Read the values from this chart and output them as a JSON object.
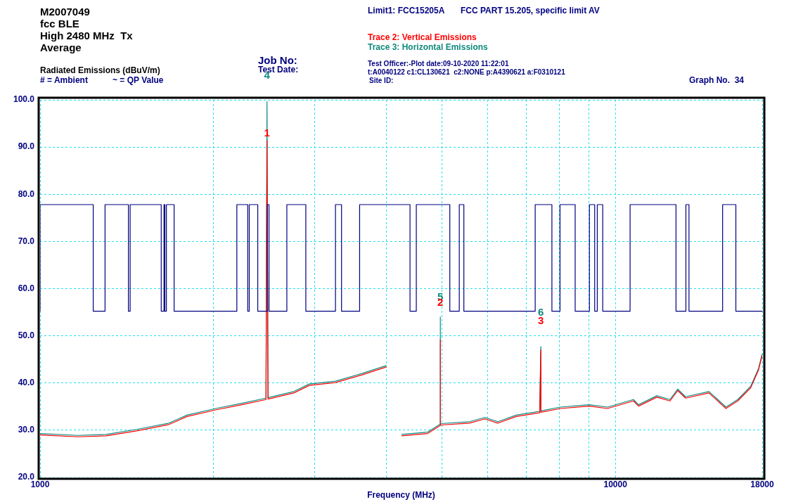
{
  "chart_data": {
    "type": "line",
    "title": "M2007049",
    "subtitle": "fcc BLE\nHigh 2480 MHz  Tx\nAverage",
    "xlabel": "Frequency (MHz)",
    "ylabel": "Radiated Emissions (dBuV/m)",
    "log": "x",
    "grid": true,
    "legend": "top",
    "marker": "none",
    "xlim": [
      1000,
      18000
    ],
    "ylim": [
      20,
      100
    ],
    "xticks": [
      1000,
      {
        "value": 2000,
        "label": null
      },
      {
        "value": 3000,
        "label": null
      },
      {
        "value": 4000,
        "label": null
      },
      {
        "value": 5000,
        "label": null
      },
      {
        "value": 6000,
        "label": null
      },
      {
        "value": 7000,
        "label": null
      },
      {
        "value": 8000,
        "label": null
      },
      {
        "value": 9000,
        "label": null
      },
      10000,
      18000
    ],
    "yticks": [
      {
        "value": 20,
        "label": "20.0"
      },
      {
        "value": 30,
        "label": "30.0"
      },
      {
        "value": 40,
        "label": "40.0"
      },
      {
        "value": 50,
        "label": "50.0"
      },
      {
        "value": 60,
        "label": "60.0"
      },
      {
        "value": 70,
        "label": "70.0"
      },
      {
        "value": 80,
        "label": "80.0"
      },
      {
        "value": 90,
        "label": "90.0"
      },
      {
        "value": 100,
        "label": "100.0"
      }
    ],
    "series": [
      {
        "name": "Limit1: FCC15205A",
        "type": "step",
        "color": "#000080",
        "x": [
          1000,
          1237,
          1297,
          1424,
          1434,
          1624,
          1642,
          1648,
          1658,
          1710,
          2198,
          2296,
          2310,
          2390,
          2483,
          2500,
          2685,
          2897,
          3262,
          3342,
          3593,
          4396,
          4508,
          5155,
          5354,
          5453,
          7255,
          7757,
          8013,
          8514,
          9014,
          9206,
          9302,
          9507,
          10607,
          12747,
          13262,
          13427,
          15362,
          16198,
          17741,
          18000
        ],
        "values": [
          55.2,
          77.8,
          55.2,
          77.8,
          55.2,
          77.8,
          55.2,
          77.8,
          55.2,
          77.8,
          55.2,
          77.8,
          55.2,
          77.8,
          55.2,
          77.8,
          55.2,
          77.8,
          55.2,
          77.8,
          55.2,
          77.8,
          55.2,
          77.8,
          55.2,
          77.8,
          55.2,
          77.8,
          55.2,
          77.8,
          55.2,
          77.8,
          55.2,
          77.8,
          55.2,
          77.8,
          55.2,
          77.8,
          55.2,
          77.8,
          55.2,
          55.2
        ]
      },
      {
        "name": "Trace 2: Vertical Emissions",
        "type": "line",
        "color": "#ff0000",
        "x": [
          1000,
          1162,
          1303,
          1477,
          1674,
          1801,
          2020,
          2241,
          2470,
          2480,
          2490,
          2761,
          2938,
          3262,
          3621,
          4000,
          4001,
          4250,
          4717,
          4960,
          4962,
          4964,
          5574,
          5934,
          6249,
          6725,
          7388,
          7420,
          7422,
          8029,
          9006,
          9688,
          10750,
          10972,
          11806,
          12443,
          12838,
          13243,
          14544,
          15568,
          16318,
          17186,
          17741,
          18000
        ],
        "values": [
          29.0,
          28.6,
          28.8,
          29.9,
          31.2,
          32.9,
          34.3,
          35.4,
          36.5,
          91.4,
          36.6,
          37.9,
          39.5,
          40.1,
          41.7,
          43.4,
          null,
          28.8,
          29.3,
          31.0,
          49.2,
          31.1,
          31.5,
          32.4,
          31.5,
          32.9,
          33.7,
          47.0,
          33.8,
          34.6,
          35.1,
          34.6,
          36.2,
          35.1,
          37.0,
          36.2,
          38.4,
          36.8,
          37.9,
          34.6,
          36.2,
          39.0,
          42.8,
          45.9
        ]
      },
      {
        "name": "Trace 3: Horizontal Emissions",
        "type": "line",
        "color": "#10897f",
        "x": [
          1000,
          1162,
          1303,
          1477,
          1674,
          1801,
          2020,
          2241,
          2470,
          2480,
          2490,
          2761,
          2938,
          3262,
          3621,
          4000,
          4001,
          4250,
          4717,
          4960,
          4962,
          4964,
          5574,
          5934,
          6249,
          6725,
          7388,
          7420,
          7422,
          8029,
          9006,
          9688,
          10750,
          10972,
          11806,
          12443,
          12838,
          13243,
          14544,
          15568,
          16318,
          17186,
          17741,
          18000
        ],
        "values": [
          29.3,
          28.9,
          29.1,
          30.2,
          31.5,
          33.2,
          34.6,
          35.7,
          36.8,
          99.6,
          36.9,
          38.2,
          39.8,
          40.4,
          42.0,
          43.7,
          null,
          29.1,
          29.6,
          31.3,
          54.0,
          31.4,
          31.8,
          32.7,
          31.8,
          33.2,
          34.0,
          47.7,
          34.1,
          34.9,
          35.4,
          34.9,
          36.5,
          35.4,
          37.3,
          36.5,
          38.7,
          37.1,
          38.2,
          34.9,
          36.5,
          39.3,
          43.1,
          46.2
        ]
      }
    ],
    "annotations": [
      "# = Ambient",
      "~ = QP Value",
      "Job No:",
      "Test Date:",
      "FCC PART 15.205, specific limit AV",
      "Test Officer:-Plot date:09-10-2020 11:22:01",
      "t:A0040122 c1:CL130621  c2:NONE p:A4390621 a:F0310121",
      "Site ID:",
      "Graph No.  34",
      {
        "text": "4",
        "x": 2480,
        "y": 99.6
      },
      {
        "text": "1",
        "x": 2480,
        "y": 91.4
      },
      {
        "text": "5",
        "x": 4962,
        "y": 54
      },
      {
        "text": "2",
        "x": 4962,
        "y": 49.2
      },
      {
        "text": "6",
        "x": 7420,
        "y": 47.7
      },
      {
        "text": "3",
        "x": 7420,
        "y": 47
      }
    ]
  }
}
